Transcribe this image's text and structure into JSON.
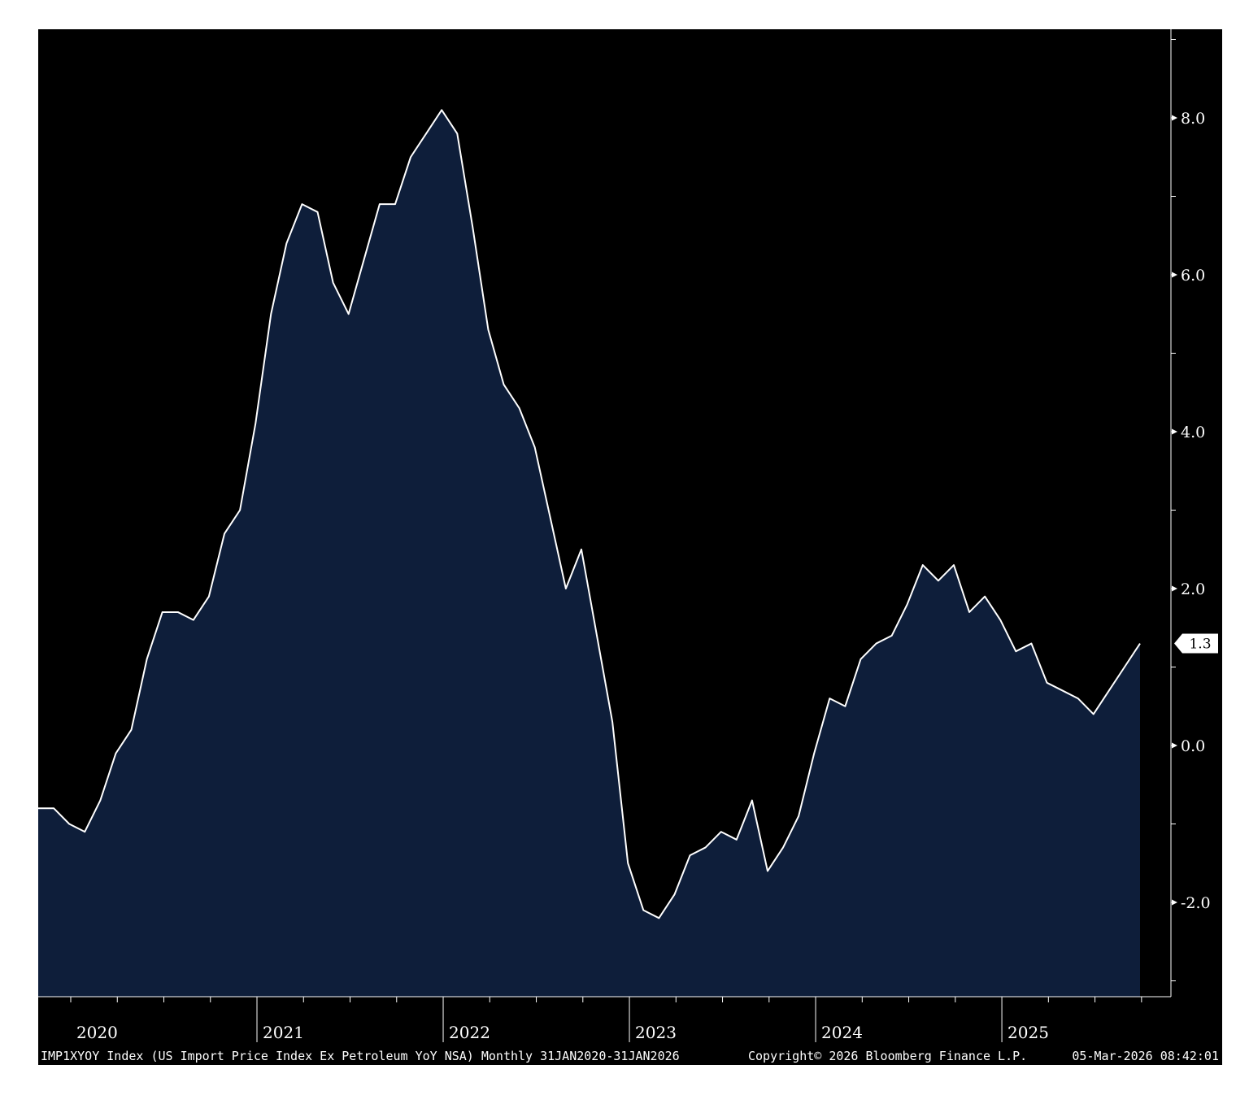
{
  "chart_data": {
    "type": "area",
    "frequency": "monthly",
    "x_start": "2020-01",
    "x_end": "2026-01",
    "ylim": [
      -3.0,
      9.0
    ],
    "y_ticks": [
      "8.0",
      "6.0",
      "4.0",
      "2.0",
      "0.0",
      "-2.0"
    ],
    "y_tick_values": [
      8.0,
      6.0,
      4.0,
      2.0,
      0.0,
      -2.0
    ],
    "x_tick_labels": [
      "2020",
      "2021",
      "2022",
      "2023",
      "2024",
      "2025"
    ],
    "last_value_label": "1.3",
    "grid": false,
    "y_axis_side": "right",
    "colors": {
      "background": "#000000",
      "fill": "#0e1e3a",
      "line": "#ffffff"
    },
    "series": [
      {
        "values": [
          -0.8,
          -0.8,
          -1.0,
          -1.1,
          -0.7,
          -0.1,
          0.2,
          1.1,
          1.7,
          1.7,
          1.6,
          1.9,
          2.7,
          3.0,
          4.1,
          5.5,
          6.4,
          6.9,
          6.8,
          5.9,
          5.5,
          6.2,
          6.9,
          6.9,
          7.5,
          7.8,
          8.1,
          7.8,
          6.6,
          5.3,
          4.6,
          4.3,
          3.8,
          2.9,
          2.0,
          2.5,
          1.4,
          0.3,
          -1.5,
          -2.1,
          -2.2,
          -1.9,
          -1.4,
          -1.3,
          -1.1,
          -1.2,
          -0.7,
          -1.6,
          -1.3,
          -0.9,
          -0.1,
          0.6,
          0.5,
          1.1,
          1.3,
          1.4,
          1.8,
          2.3,
          2.1,
          2.3,
          1.7,
          1.9,
          1.6,
          1.2,
          1.3,
          0.8,
          0.7,
          0.6,
          0.4,
          0.7,
          1.0,
          1.3
        ]
      }
    ]
  },
  "footer": {
    "description": "IMP1XYOY Index (US Import Price Index Ex Petroleum YoY NSA) Monthly 31JAN2020-31JAN2026",
    "copyright": "Copyright© 2026 Bloomberg Finance L.P.",
    "timestamp": "05-Mar-2026 08:42:01"
  }
}
